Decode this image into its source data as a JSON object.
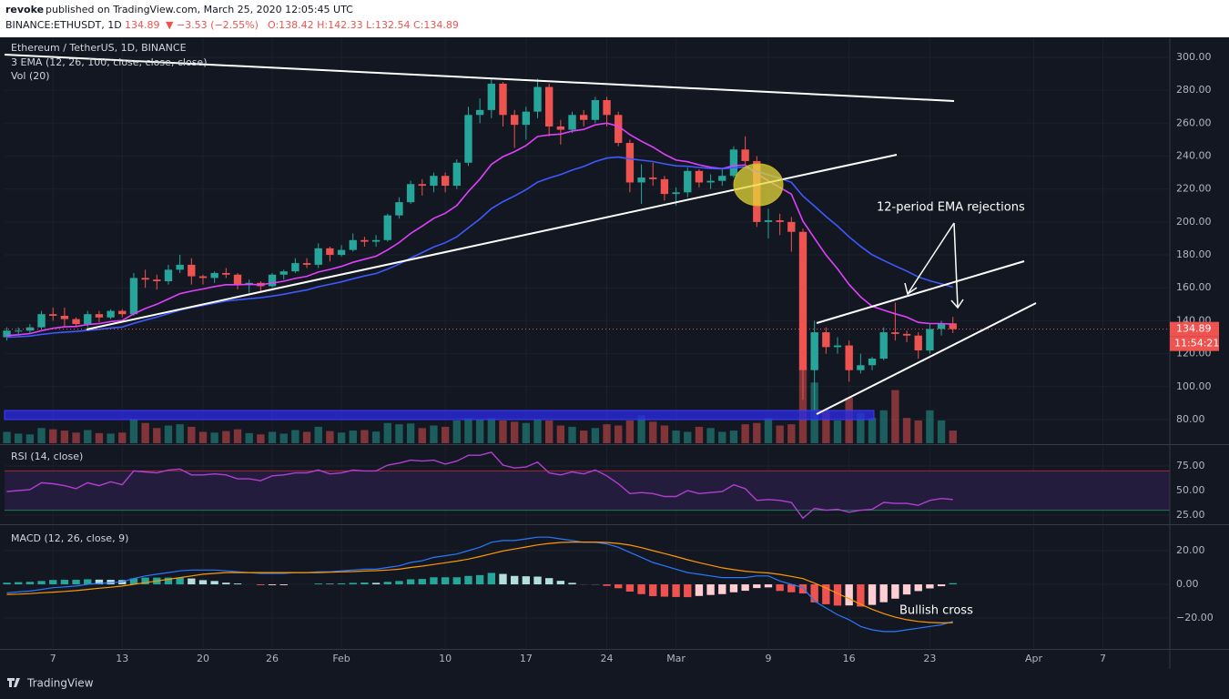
{
  "header": {
    "author": "revoke",
    "byline": "published on TradingView.com, March 25, 2020 12:05:45 UTC",
    "symbol": "BINANCE:ETHUSDT, 1D",
    "last": "134.89",
    "change": "▼ −3.53 (−2.55%)",
    "ohlc": "O:138.42 H:142.33 L:132.54 C:134.89"
  },
  "footer": {
    "brand": "TradingView"
  },
  "chart_data": [
    {
      "type": "candlestick",
      "title": "Ethereum / TetherUS, 1D, BINANCE",
      "indicators": [
        "3 EMA (12, 26, 100, close, close, close)",
        "Vol (20)"
      ],
      "x": [
        3,
        4,
        5,
        6,
        7,
        8,
        9,
        10,
        11,
        12,
        13,
        14,
        15,
        16,
        17,
        18,
        19,
        20,
        21,
        22,
        23,
        24,
        25,
        26,
        27,
        28,
        29,
        30,
        31,
        32,
        33,
        34,
        35,
        36,
        37,
        38,
        39,
        40,
        41,
        42,
        43,
        44,
        45,
        46,
        47,
        48,
        49,
        50,
        51,
        52,
        53,
        54,
        55,
        56,
        57,
        58,
        59,
        60,
        61,
        62,
        63,
        64,
        65,
        66,
        67,
        68,
        69,
        70,
        71,
        72,
        73,
        74,
        75,
        76,
        77,
        78,
        79,
        80,
        81,
        82,
        83,
        84,
        85
      ],
      "open": [
        130,
        134,
        134,
        136,
        144,
        143,
        141,
        138,
        144,
        142,
        146,
        144,
        166,
        165,
        164,
        171,
        174,
        167,
        166,
        169,
        168,
        162,
        163,
        161,
        168,
        170,
        175,
        174,
        184,
        180,
        183,
        189,
        188,
        189,
        204,
        212,
        223,
        222,
        228,
        222,
        236,
        265,
        268,
        284,
        265,
        259,
        267,
        282,
        258,
        256,
        265,
        262,
        274,
        265,
        248,
        224,
        227,
        226,
        217,
        218,
        231,
        224,
        225,
        228,
        244,
        237,
        200,
        201,
        200,
        194,
        110,
        133,
        124,
        125,
        110,
        113,
        117,
        133,
        132,
        131,
        122,
        135,
        138.42
      ],
      "high": [
        136,
        136,
        138,
        146,
        148,
        148,
        142,
        146,
        146,
        147,
        147,
        169,
        171,
        168,
        174,
        180,
        178,
        168,
        170,
        172,
        169,
        165,
        164,
        169,
        171,
        178,
        178,
        187,
        185,
        186,
        193,
        191,
        192,
        205,
        215,
        225,
        226,
        230,
        230,
        238,
        270,
        275,
        287,
        285,
        268,
        270,
        287,
        284,
        262,
        267,
        268,
        276,
        276,
        267,
        250,
        235,
        236,
        228,
        221,
        233,
        232,
        229,
        233,
        246,
        252,
        240,
        208,
        205,
        203,
        196,
        140,
        136,
        130,
        128,
        120,
        118,
        136,
        151,
        134,
        133,
        138,
        140,
        142.33
      ],
      "low": [
        128,
        131,
        132,
        135,
        140,
        136,
        136,
        136,
        139,
        141,
        142,
        143,
        160,
        159,
        162,
        169,
        162,
        162,
        163,
        166,
        159,
        157,
        158,
        160,
        165,
        169,
        172,
        172,
        176,
        179,
        182,
        185,
        185,
        188,
        202,
        211,
        216,
        218,
        218,
        220,
        234,
        260,
        263,
        258,
        245,
        250,
        263,
        252,
        247,
        254,
        258,
        260,
        258,
        246,
        218,
        211,
        222,
        213,
        210,
        215,
        221,
        220,
        222,
        227,
        235,
        197,
        190,
        192,
        182,
        92,
        86,
        120,
        120,
        103,
        108,
        110,
        116,
        128,
        127,
        117,
        120,
        131,
        132.54
      ],
      "close": [
        134,
        134,
        136,
        144,
        143,
        141,
        138,
        144,
        142,
        146,
        144,
        166,
        165,
        164,
        171,
        174,
        167,
        166,
        169,
        168,
        162,
        163,
        161,
        168,
        170,
        175,
        174,
        184,
        180,
        183,
        189,
        188,
        189,
        204,
        212,
        223,
        222,
        228,
        222,
        236,
        265,
        268,
        284,
        265,
        259,
        267,
        282,
        258,
        256,
        265,
        262,
        274,
        265,
        248,
        224,
        227,
        226,
        217,
        218,
        231,
        224,
        225,
        228,
        244,
        237,
        200,
        201,
        200,
        194,
        110,
        133,
        124,
        125,
        110,
        113,
        117,
        133,
        132,
        131,
        122,
        135,
        138.42,
        134.89
      ],
      "up_color": "#26a69a",
      "down_color": "#ef5350",
      "lines": [
        {
          "color": "#e040fb",
          "values": [
            131,
            131.5,
            132.2,
            134,
            135.4,
            136.3,
            136.5,
            137.7,
            138.3,
            139.5,
            140.2,
            144.2,
            147.4,
            150,
            153.2,
            156.4,
            158,
            159.3,
            160.8,
            161.9,
            161.9,
            162.1,
            161.9,
            162.9,
            164,
            165.7,
            167,
            169.6,
            171.2,
            173,
            175.5,
            177.4,
            179.2,
            183,
            187.5,
            193,
            197.5,
            202.2,
            205.3,
            210,
            218.5,
            226,
            235,
            239.7,
            242.7,
            246.4,
            251.9,
            252.9,
            253.4,
            255.2,
            256.2,
            259,
            260,
            258.2,
            253,
            249,
            245.5,
            241.1,
            237.6,
            236.6,
            234.7,
            233.2,
            232.4,
            234.2,
            234.6,
            229.3,
            224.9,
            221,
            216.9,
            200.5,
            190.1,
            179.9,
            171.5,
            162,
            154.5,
            148.8,
            146.4,
            144.2,
            142.2,
            139,
            138.3,
            138.3,
            137.9
          ]
        },
        {
          "color": "#3d5afe",
          "values": [
            130,
            130.3,
            130.7,
            131.7,
            132.5,
            133.1,
            133.5,
            134.2,
            134.8,
            135.6,
            136.2,
            138.4,
            140.4,
            142.2,
            144.3,
            146.5,
            148,
            149.3,
            150.7,
            152,
            152.7,
            153.4,
            154,
            155,
            156.1,
            157.5,
            158.7,
            160.7,
            162.1,
            163.6,
            165.5,
            167.2,
            168.7,
            171.4,
            174.4,
            178.1,
            181.4,
            184.8,
            187.4,
            191,
            196.5,
            201.8,
            208.1,
            212.3,
            215.8,
            219.6,
            224.2,
            226.7,
            228.8,
            231.5,
            233.7,
            236.7,
            238.8,
            239.4,
            238.3,
            237.5,
            236.7,
            235.3,
            234.1,
            233.8,
            233.1,
            232.5,
            232.2,
            233,
            233.3,
            230.8,
            228.6,
            226.5,
            224.1,
            215.7,
            209.6,
            203.3,
            197.5,
            191,
            185.2,
            180.1,
            176.6,
            173.3,
            170.2,
            166.6,
            164.3,
            162.4,
            160.4
          ]
        }
      ],
      "volume": {
        "values": [
          450,
          380,
          350,
          600,
          550,
          500,
          420,
          520,
          400,
          380,
          420,
          950,
          800,
          600,
          700,
          750,
          650,
          450,
          420,
          480,
          550,
          400,
          350,
          450,
          380,
          520,
          450,
          650,
          480,
          420,
          500,
          520,
          460,
          800,
          750,
          780,
          600,
          700,
          650,
          900,
          1000,
          950,
          1000,
          900,
          850,
          800,
          950,
          900,
          700,
          650,
          500,
          600,
          750,
          700,
          900,
          1100,
          850,
          700,
          500,
          450,
          650,
          600,
          450,
          500,
          750,
          800,
          1000,
          700,
          750,
          3000,
          2400,
          1300,
          900,
          1800,
          1200,
          1000,
          1300,
          2100,
          1000,
          900,
          1300,
          900,
          500
        ],
        "vlim": [
          0,
          4000
        ]
      },
      "timer": "11:54:21",
      "annotations": [
        "12-period EMA rejections"
      ],
      "xlim": [
        2.8,
        103.8
      ],
      "xticks": [
        7,
        13,
        20,
        26,
        {
          "value": 32,
          "label": "Feb"
        },
        {
          "value": 41,
          "label": "10"
        },
        {
          "value": 48,
          "label": "17"
        },
        {
          "value": 55,
          "label": "24"
        },
        {
          "value": 61,
          "label": "Mar"
        },
        {
          "value": 69,
          "label": "9"
        },
        {
          "value": 76,
          "label": "16"
        },
        {
          "value": 83,
          "label": "23"
        },
        {
          "value": 92,
          "label": "Apr"
        },
        {
          "value": 98,
          "label": "7"
        }
      ],
      "ylim": [
        65.6,
        311.6
      ],
      "yticks": [
        {
          "value": 80,
          "label": "80.00"
        },
        {
          "value": 100,
          "label": "100.00"
        },
        {
          "value": 120,
          "label": "120.00"
        },
        {
          "value": 140,
          "label": "140.00"
        },
        {
          "value": 160,
          "label": "160.00"
        },
        {
          "value": 180,
          "label": "180.00"
        },
        {
          "value": 200,
          "label": "200.00"
        },
        {
          "value": 220,
          "label": "220.00"
        },
        {
          "value": 240,
          "label": "240.00"
        },
        {
          "value": 260,
          "label": "260.00"
        },
        {
          "value": 280,
          "label": "280.00"
        },
        {
          "value": 300,
          "label": "300.00"
        }
      ],
      "grid": true
    },
    {
      "type": "line",
      "title": "RSI (14, close)",
      "color": "#b03fd0",
      "values": [
        49,
        50,
        51,
        58,
        57,
        55,
        52,
        58,
        55,
        59,
        56,
        70,
        69,
        68,
        71,
        72,
        66,
        66,
        67,
        66,
        62,
        62,
        60,
        65,
        66,
        68,
        68,
        71,
        67,
        68,
        71,
        70,
        70,
        76,
        78,
        81,
        80,
        81,
        77,
        80,
        86,
        86,
        89,
        76,
        73,
        74,
        79,
        68,
        66,
        69,
        67,
        71,
        65,
        57,
        47,
        48,
        47,
        44,
        44,
        50,
        47,
        48,
        49,
        56,
        52,
        40,
        41,
        40,
        38,
        22,
        32,
        30,
        31,
        28,
        30,
        31,
        38,
        37,
        37,
        35,
        40,
        42,
        41
      ],
      "levels": [
        {
          "value": 70,
          "color": "#9c2a33"
        },
        {
          "value": 30,
          "color": "#1f7a55"
        }
      ],
      "band_fill": "#241c3c",
      "ylim": [
        16.7,
        95.4
      ],
      "yticks": [
        {
          "value": 25,
          "label": "25.00"
        },
        {
          "value": 50,
          "label": "50.00"
        },
        {
          "value": 75,
          "label": "75.00"
        }
      ],
      "grid": true
    },
    {
      "type": "macd",
      "title": "MACD (12, 26, close, 9)",
      "series": [
        {
          "color": "#2979ff",
          "values": [
            -5,
            -4.5,
            -4,
            -3,
            -2,
            -1.5,
            -1,
            0,
            0.5,
            1,
            1.5,
            3.5,
            5,
            6,
            7,
            8,
            8.5,
            8.5,
            8.5,
            8,
            7.5,
            7,
            6.5,
            6.5,
            6.5,
            7,
            7,
            7.5,
            7.5,
            8,
            8.5,
            9,
            9,
            10,
            11,
            13,
            14,
            16,
            17,
            18,
            20,
            22,
            25,
            26,
            26,
            27,
            28,
            28,
            27,
            26,
            25,
            25,
            24,
            22,
            19,
            16,
            13,
            11,
            9,
            7,
            6,
            5,
            4,
            4,
            4,
            5,
            5,
            2,
            0,
            -2,
            -10,
            -14,
            -18,
            -21,
            -25,
            -27,
            -28,
            -28,
            -27,
            -26,
            -25,
            -24,
            -22
          ]
        },
        {
          "color": "#ff9800",
          "values": [
            -6,
            -5.8,
            -5.5,
            -5,
            -4.6,
            -4.2,
            -3.7,
            -3,
            -2.3,
            -1.7,
            -1,
            0,
            1,
            2,
            3,
            4,
            5,
            6,
            6.5,
            7,
            7,
            7,
            7,
            7,
            7,
            7,
            7,
            7,
            7.2,
            7.4,
            7.6,
            7.9,
            8.1,
            8.5,
            9,
            10,
            10.8,
            11.8,
            12.8,
            13.8,
            15,
            16.5,
            18.2,
            19.8,
            21,
            22.2,
            23.4,
            24.3,
            24.9,
            25.1,
            25.1,
            25.1,
            24.9,
            24.3,
            23.3,
            21.8,
            20,
            18.3,
            16.5,
            14.6,
            12.9,
            11.3,
            9.8,
            8.7,
            7.8,
            7.2,
            6.8,
            5.9,
            4.7,
            3.4,
            0.7,
            -2.2,
            -5.4,
            -8.5,
            -11.8,
            -14.8,
            -17.4,
            -19.5,
            -21,
            -22,
            -22.6,
            -22.9,
            -22.7
          ]
        }
      ],
      "histogram": {
        "values": [
          1,
          1.3,
          1.5,
          2,
          2.6,
          2.7,
          2.7,
          3,
          2.8,
          2.7,
          2.5,
          3.5,
          4,
          4,
          4,
          4,
          3.5,
          2.5,
          2,
          1,
          0.5,
          0,
          -0.5,
          -0.5,
          -0.5,
          0,
          0,
          0.5,
          0.3,
          0.6,
          0.9,
          1.1,
          0.9,
          1.5,
          2,
          3,
          3.2,
          4.2,
          4.2,
          4.2,
          5,
          5.5,
          6.8,
          6.2,
          5,
          4.8,
          4.6,
          3.7,
          2.1,
          0.9,
          -0.1,
          -0.1,
          -0.9,
          -2.3,
          -4.3,
          -5.8,
          -7,
          -7.3,
          -7.5,
          -7.6,
          -6.9,
          -6.3,
          -5.8,
          -4.7,
          -3.8,
          -2.2,
          -1.8,
          -3.9,
          -4.7,
          -5.4,
          -10.7,
          -11.8,
          -12.6,
          -12.5,
          -13.2,
          -12.2,
          -10.6,
          -8.5,
          -6,
          -4,
          -2.4,
          -1.1,
          0.7
        ],
        "colors": [
          "#26a69a",
          "#b2dfdb",
          "#ffcdd2",
          "#ef5350"
        ]
      },
      "annotations": [
        "Bullish cross"
      ],
      "ylim": [
        -37.8,
        34.6
      ],
      "yticks": [
        {
          "value": -20,
          "label": "−20.00"
        },
        {
          "value": 0,
          "label": "0.00"
        },
        {
          "value": 20,
          "label": "20.00"
        }
      ],
      "grid": true
    }
  ]
}
